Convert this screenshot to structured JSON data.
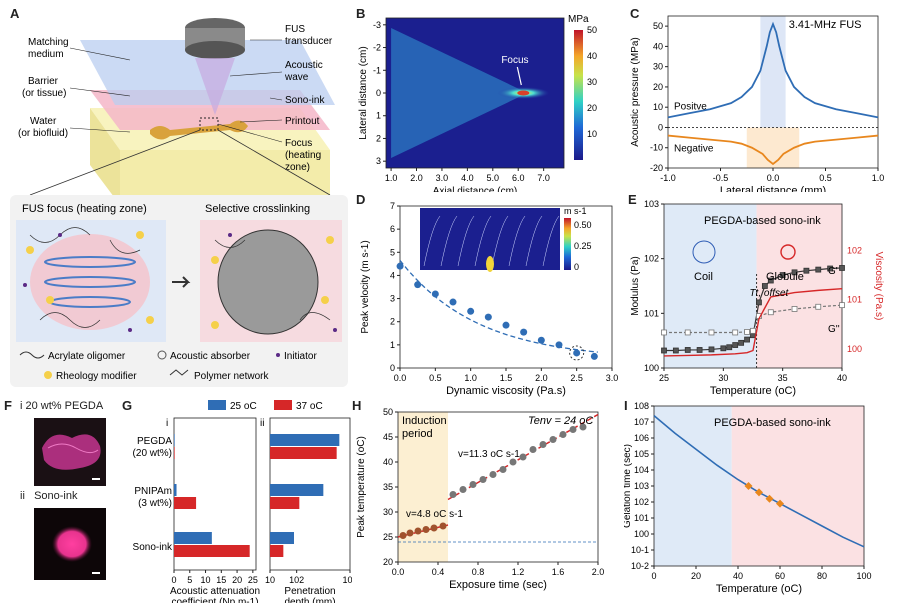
{
  "panel_labels": {
    "A": "A",
    "B": "B",
    "C": "C",
    "D": "D",
    "E": "E",
    "F": "F",
    "G": "G",
    "H": "H",
    "I": "I"
  },
  "panelA": {
    "labels": [
      "Matching",
      "medium",
      "Barrier",
      "(or tissue)",
      "Water",
      "(or biofluid)",
      "FUS",
      "transducer",
      "Acoustic",
      "wave",
      "Sono-ink",
      "Printout",
      "Focus",
      "(heating",
      "zone)"
    ],
    "sub_left": "FUS focus (heating zone)",
    "sub_right": "Selective crosslinking",
    "legend": [
      "Acrylate oligomer",
      "Acoustic absorber",
      "Initiator",
      "Rheology modifier",
      "Polymer network"
    ]
  },
  "colors": {
    "blue": "#2f6db5",
    "orange": "#e8871e",
    "red": "#d62728",
    "ink": "#e8338e",
    "yellow": "#f5d04a"
  },
  "chart_data": [
    {
      "id": "B",
      "type": "heatmap",
      "xlabel": "Axial distance (cm)",
      "ylabel": "Lateral distance (cm)",
      "xticks": [
        "1.0",
        "2.0",
        "3.0",
        "4.0",
        "5.0",
        "6.0",
        "7.0"
      ],
      "yticks": [
        "-3",
        "-2",
        "-1",
        "0",
        "1",
        "2",
        "3"
      ],
      "xlim": [
        0.8,
        7.8
      ],
      "ylim": [
        -3.3,
        3.3
      ],
      "colorbar": {
        "unit": "MPa",
        "ticks": [
          "50",
          "40",
          "30",
          "20",
          "10"
        ],
        "range": [
          0,
          50
        ]
      },
      "annotation": "Focus",
      "focus": [
        6.2,
        0
      ]
    },
    {
      "id": "C",
      "type": "line",
      "title": "3.41-MHz FUS",
      "xlabel": "Lateral distance (mm)",
      "ylabel": "Acoustic pressure (MPa)",
      "xticks": [
        "-1.0",
        "-0.5",
        "0.0",
        "0.5",
        "1.0"
      ],
      "yticks": [
        "50",
        "40",
        "30",
        "20",
        "10",
        "0",
        "-10",
        "-20"
      ],
      "xlim": [
        -1,
        1
      ],
      "ylim": [
        -20,
        55
      ],
      "annotations": [
        "Positve",
        "Negative"
      ],
      "series": [
        {
          "name": "Positve",
          "x": [
            -1,
            -0.8,
            -0.6,
            -0.4,
            -0.3,
            -0.2,
            -0.12,
            -0.06,
            -0.03,
            0,
            0.03,
            0.06,
            0.12,
            0.2,
            0.3,
            0.4,
            0.6,
            0.8,
            1
          ],
          "values": [
            5,
            7,
            9,
            12,
            15,
            20,
            28,
            40,
            47,
            51,
            47,
            40,
            28,
            20,
            15,
            12,
            9,
            7,
            5
          ]
        },
        {
          "name": "Negative",
          "x": [
            -1,
            -0.8,
            -0.6,
            -0.4,
            -0.3,
            -0.2,
            -0.1,
            -0.05,
            0,
            0.05,
            0.1,
            0.2,
            0.3,
            0.4,
            0.6,
            0.8,
            1
          ],
          "values": [
            -4,
            -5,
            -6,
            -7,
            -8,
            -10,
            -13,
            -16,
            -18,
            -16,
            -13,
            -10,
            -8,
            -7,
            -6,
            -5,
            -4
          ]
        }
      ]
    },
    {
      "id": "D",
      "type": "scatter",
      "xlabel": "Dynamic viscosity (Pa.s)",
      "ylabel": "Peak velocity (m s-1)",
      "xticks": [
        "0.0",
        "0.5",
        "1.0",
        "1.5",
        "2.0",
        "2.5",
        "3.0"
      ],
      "yticks": [
        "0",
        "1",
        "2",
        "3",
        "4",
        "5",
        "6",
        "7"
      ],
      "xlim": [
        0,
        3
      ],
      "ylim": [
        0,
        7
      ],
      "x": [
        0.001,
        0.25,
        0.5,
        0.75,
        1.0,
        1.25,
        1.5,
        1.75,
        2.0,
        2.25,
        2.5,
        2.75
      ],
      "values": [
        4.4,
        3.6,
        3.2,
        2.85,
        2.45,
        2.2,
        1.85,
        1.55,
        1.2,
        1.0,
        0.65,
        0.5
      ],
      "inset": {
        "unit": "m s-1",
        "ticks": [
          "0.50",
          "0.25",
          "0"
        ]
      }
    },
    {
      "id": "E",
      "type": "line",
      "title": "PEGDA-based sono-ink",
      "xlabel": "Temperature (oC)",
      "ylabel": "Modulus (Pa)",
      "ylabel_right": "Viscosity (Pa.s)",
      "xticks": [
        "25",
        "30",
        "35",
        "40"
      ],
      "xtick_vals": [
        25,
        30,
        35,
        40
      ],
      "yticks": [
        "100",
        "101",
        "102",
        "103"
      ],
      "yticks_right": [
        "100",
        "101",
        "102"
      ],
      "xlim": [
        25,
        40
      ],
      "ylim": [
        0,
        3
      ],
      "annotations": [
        "Coil",
        "Globule",
        "Tt, offset",
        "G'",
        "G''"
      ],
      "series": [
        {
          "name": "G'",
          "x": [
            25,
            26,
            27,
            28,
            29,
            30,
            30.5,
            31,
            31.5,
            32,
            32.5,
            33,
            33.5,
            34,
            35,
            36,
            37,
            38,
            39,
            40
          ],
          "values": [
            0.32,
            0.32,
            0.33,
            0.33,
            0.34,
            0.36,
            0.38,
            0.42,
            0.46,
            0.52,
            0.6,
            1.2,
            1.5,
            1.6,
            1.7,
            1.75,
            1.78,
            1.8,
            1.82,
            1.83
          ]
        },
        {
          "name": "G''",
          "x": [
            25,
            27,
            29,
            31,
            32,
            32.5,
            33,
            34,
            36,
            38,
            40
          ],
          "values": [
            0.65,
            0.65,
            0.65,
            0.65,
            0.66,
            0.68,
            0.95,
            1.02,
            1.08,
            1.12,
            1.15
          ]
        },
        {
          "name": "Viscosity",
          "x": [
            25,
            27,
            29,
            31,
            32,
            32.5,
            33,
            34,
            36,
            38,
            40
          ],
          "values": [
            0.22,
            0.23,
            0.24,
            0.26,
            0.28,
            0.32,
            0.9,
            1.3,
            1.38,
            1.42,
            1.45
          ]
        }
      ]
    },
    {
      "id": "G",
      "type": "bar",
      "legend": [
        "25 oC",
        "37 oC"
      ],
      "categories": [
        "PEGDA",
        "(20 wt%)",
        "PNIPAm",
        "(3 wt%)",
        "Sono-ink"
      ],
      "groups": [
        "PEGDA (20 wt%)",
        "PNIPAm (3 wt%)",
        "Sono-ink"
      ],
      "sub_i": {
        "xlabel": "Acoustic attenuation",
        "xlabel2": "coefficient (Np m-1)",
        "xticks": [
          "0",
          "5",
          "10",
          "15",
          "20",
          "25"
        ],
        "xlim": [
          0,
          26
        ],
        "series": [
          {
            "name": "25 oC",
            "values": [
              0.2,
              0.8,
              12
            ]
          },
          {
            "name": "37 oC",
            "values": [
              0.2,
              7,
              24
            ]
          }
        ]
      },
      "sub_ii": {
        "xlabel": "Penetration",
        "xlabel2": "depth (mm)",
        "xticks": [
          "10",
          "102",
          "104"
        ],
        "xlim_log": [
          1,
          4
        ],
        "series": [
          {
            "name": "25 oC",
            "values": [
              3.6,
              3.0,
              1.9
            ]
          },
          {
            "name": "37 oC",
            "values": [
              3.5,
              2.1,
              1.5
            ]
          }
        ]
      },
      "roman": [
        "i",
        "ii"
      ]
    },
    {
      "id": "H",
      "type": "scatter",
      "xlabel": "Exposure time (sec)",
      "ylabel": "Peak temperature (oC)",
      "xticks": [
        "0.0",
        "0.4",
        "0.8",
        "1.2",
        "1.6",
        "2.0"
      ],
      "yticks": [
        "20",
        "25",
        "30",
        "35",
        "40",
        "45",
        "50"
      ],
      "xlim": [
        0,
        2
      ],
      "ylim": [
        20,
        50
      ],
      "annotations": [
        "Induction",
        "period",
        "Tenv = 24 oC",
        "v=4.8 oC s-1",
        "v=11.3 oC s-1"
      ],
      "x": [
        0.05,
        0.12,
        0.2,
        0.28,
        0.36,
        0.45,
        0.55,
        0.65,
        0.75,
        0.85,
        0.95,
        1.05,
        1.15,
        1.25,
        1.35,
        1.45,
        1.55,
        1.65,
        1.75,
        1.85
      ],
      "values": [
        25.3,
        25.8,
        26.2,
        26.5,
        26.8,
        27.2,
        33.5,
        34.5,
        35.5,
        36.5,
        37.5,
        38.5,
        40,
        41,
        42.5,
        43.5,
        44.5,
        45.5,
        46.5,
        47
      ]
    },
    {
      "id": "I",
      "type": "line",
      "title": "PEGDA-based sono-ink",
      "xlabel": "Temperature (oC)",
      "ylabel": "Gelation time (sec)",
      "xticks": [
        "0",
        "20",
        "40",
        "60",
        "80",
        "100"
      ],
      "yticks": [
        "10-2",
        "10-1",
        "100",
        "101",
        "102",
        "103",
        "104",
        "105",
        "106",
        "107",
        "108"
      ],
      "xlim": [
        0,
        100
      ],
      "ylim": [
        -2,
        8
      ],
      "series": [
        {
          "name": "fit",
          "x": [
            0,
            10,
            20,
            30,
            40,
            50,
            60,
            70,
            80,
            90,
            100
          ],
          "values": [
            7.4,
            6.3,
            5.3,
            4.3,
            3.4,
            2.6,
            1.9,
            1.2,
            0.5,
            -0.2,
            -0.8
          ]
        }
      ],
      "points": {
        "x": [
          45,
          50,
          55,
          60
        ],
        "values": [
          3.0,
          2.6,
          2.2,
          1.9
        ]
      }
    }
  ],
  "panelF": {
    "roman_i": "i",
    "title_i": "20 wt% PEGDA",
    "roman_ii": "ii",
    "title_ii": "Sono-ink"
  }
}
